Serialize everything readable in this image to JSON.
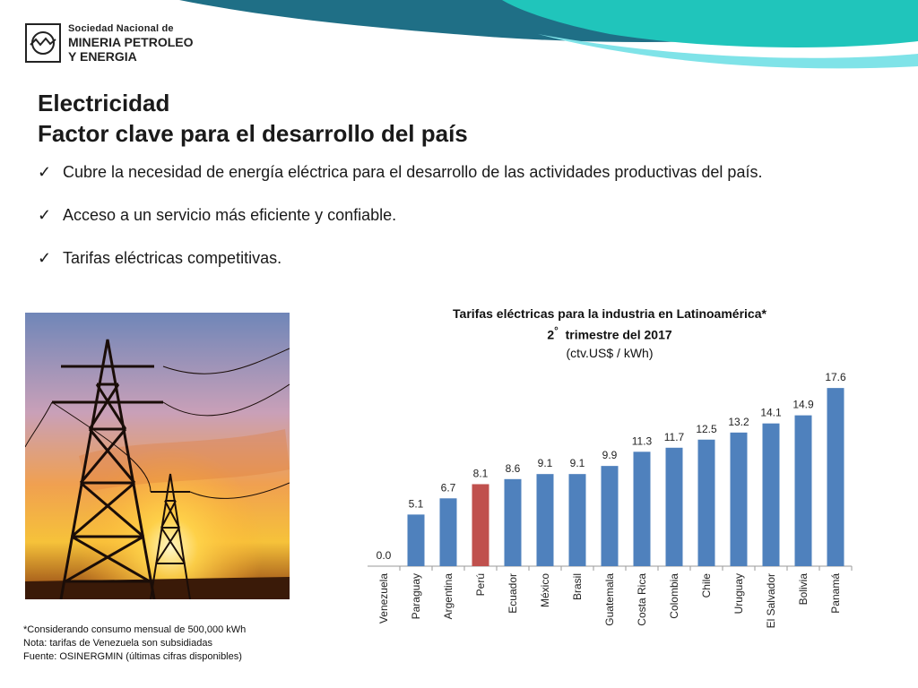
{
  "header": {
    "logo_line1": "Sociedad Nacional de",
    "logo_line2": "MINERIA PETROLEO",
    "logo_line3": "Y ENERGIA",
    "colors": {
      "wave_dark": "#1f6f86",
      "wave_teal": "#1fc1b9",
      "wave_light": "#7fe3e8"
    }
  },
  "slide": {
    "title_line1": "Electricidad",
    "title_line2": "Factor clave para el desarrollo del país",
    "bullets": [
      "Cubre la necesidad de energía eléctrica para el desarrollo de las actividades productivas del país.",
      "Acceso a un servicio más eficiente y confiable.",
      "Tarifas eléctricas competitivas."
    ],
    "check_icon": "✓",
    "footnotes": [
      "*Considerando consumo mensual de 500,000 kWh",
      "Nota: tarifas de Venezuela son subsidiadas",
      "Fuente: OSINERGMIN (últimas cifras disponibles)"
    ]
  },
  "chart_data": {
    "type": "bar",
    "title": "Tarifas eléctricas para la industria en Latinoamérica*",
    "subtitle_num": "2",
    "subtitle_deg": "°",
    "subtitle_rest": "trimestre del 2017",
    "units": "(ctv.US$ / kWh)",
    "categories": [
      "Venezuela",
      "Paraguay",
      "Argentina",
      "Perú",
      "Ecuador",
      "México",
      "Brasil",
      "Guatemala",
      "Costa Rica",
      "Colombia",
      "Chile",
      "Uruguay",
      "El Salvador",
      "Bolivia",
      "Panamá"
    ],
    "values": [
      0.0,
      5.1,
      6.7,
      8.1,
      8.6,
      9.1,
      9.1,
      9.9,
      11.3,
      11.7,
      12.5,
      13.2,
      14.1,
      14.9,
      17.6
    ],
    "value_labels": [
      "0.0",
      "5.1",
      "6.7",
      "8.1",
      "8.6",
      "9.1",
      "9.1",
      "9.9",
      "11.3",
      "11.7",
      "12.5",
      "13.2",
      "14.1",
      "14.9",
      "17.6"
    ],
    "highlight_index": 3,
    "ylim": [
      0,
      18
    ],
    "grid": false,
    "colors": {
      "bar": "#4f81bd",
      "highlight": "#c0504d"
    }
  }
}
